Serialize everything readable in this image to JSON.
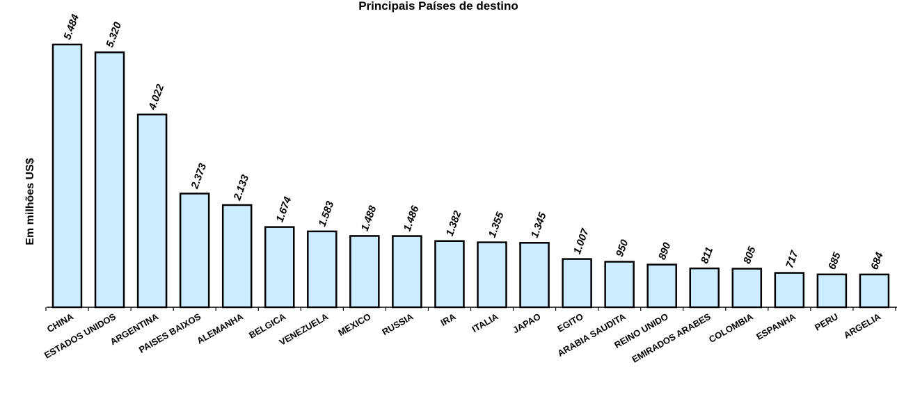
{
  "chart_data": {
    "type": "bar",
    "title": "Principais Países de destino",
    "xlabel": "",
    "ylabel": "Em milhões US$",
    "ylim": [
      0,
      5484
    ],
    "grid": false,
    "legend": "none",
    "colors": {
      "bar_fill": "#CCECFF",
      "bar_stroke": "#000000",
      "axis": "#000000",
      "text": "#000000"
    },
    "categories": [
      "CHINA",
      "ESTADOS UNIDOS",
      "ARGENTINA",
      "PAISES BAIXOS",
      "ALEMANHA",
      "BELGICA",
      "VENEZUELA",
      "MEXICO",
      "RUSSIA",
      "IRA",
      "ITALIA",
      "JAPAO",
      "EGITO",
      "ARABIA SAUDITA",
      "REINO UNIDO",
      "EMIRADOS ARABES",
      "COLOMBIA",
      "ESPANHA",
      "PERU",
      "ARGELIA"
    ],
    "values": [
      5484,
      5320,
      4022,
      2373,
      2133,
      1674,
      1583,
      1488,
      1486,
      1382,
      1355,
      1345,
      1007,
      950,
      890,
      811,
      805,
      717,
      685,
      684
    ],
    "value_labels": [
      "5.484",
      "5.320",
      "4.022",
      "2.373",
      "2.133",
      "1.674",
      "1.583",
      "1.488",
      "1.486",
      "1.382",
      "1.355",
      "1.345",
      "1.007",
      "950",
      "890",
      "811",
      "805",
      "717",
      "685",
      "684"
    ]
  }
}
